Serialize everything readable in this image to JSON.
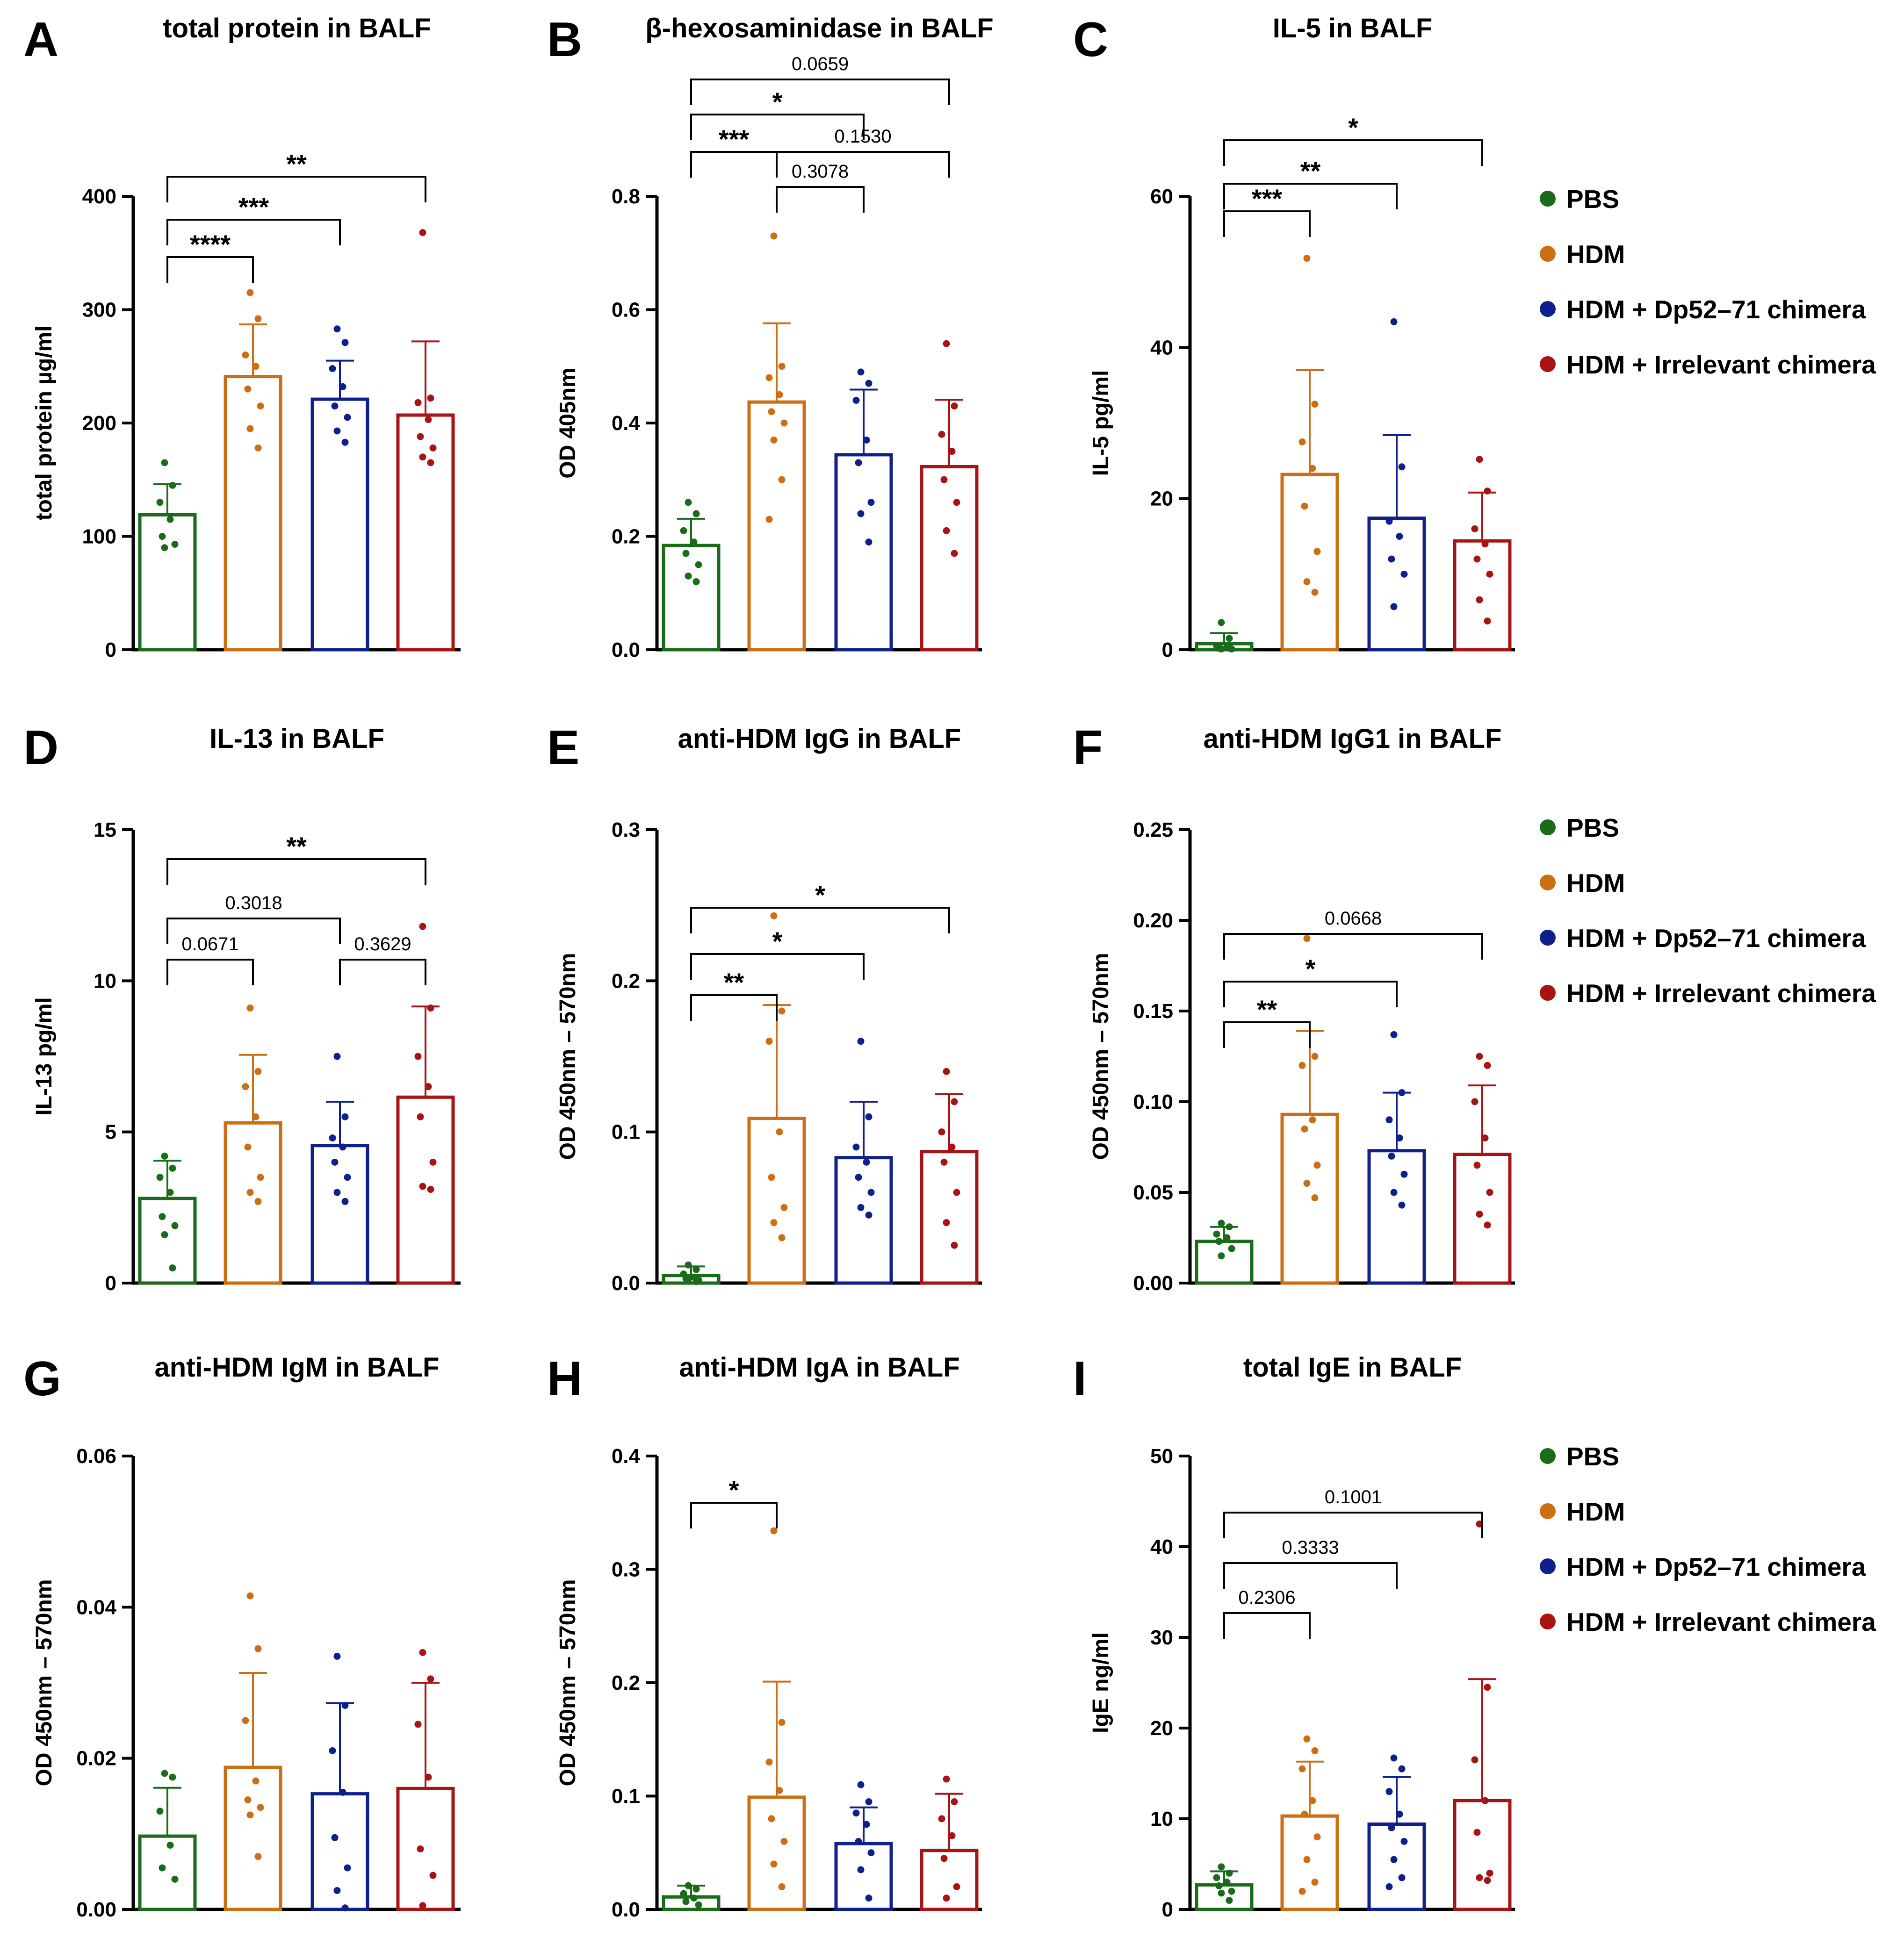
{
  "figure": {
    "legend": {
      "items": [
        {
          "label": "PBS",
          "color": "#1a6b1a"
        },
        {
          "label": "HDM",
          "color": "#cc6f14"
        },
        {
          "label": "HDM + Dp52–71 chimera",
          "color": "#0f1f8c"
        },
        {
          "label": "HDM + Irrelevant chimera",
          "color": "#a81414"
        }
      ]
    }
  },
  "chart_data": [
    {
      "panel": "A",
      "type": "bar",
      "title": "total protein in BALF",
      "ylabel": "total protein µg/ml",
      "ylim": [
        0,
        400
      ],
      "yticks": [
        0,
        100,
        200,
        300,
        400
      ],
      "ytick_labels": [
        "0",
        "100",
        "200",
        "300",
        "400"
      ],
      "categories": [
        "PBS",
        "HDM",
        "HDM + Dp52–71 chimera",
        "HDM + Irrelevant chimera"
      ],
      "values": [
        119,
        241,
        221,
        207
      ],
      "errors": [
        27,
        46,
        34,
        65
      ],
      "points": [
        [
          165,
          145,
          130,
          115,
          100,
          93,
          90
        ],
        [
          315,
          292,
          260,
          250,
          230,
          215,
          195,
          178
        ],
        [
          283,
          271,
          248,
          232,
          215,
          205,
          193,
          183
        ],
        [
          368,
          222,
          218,
          203,
          188,
          178,
          170,
          165
        ]
      ],
      "comparisons": [
        {
          "from": 0,
          "to": 1,
          "label": "****"
        },
        {
          "from": 0,
          "to": 2,
          "label": "***"
        },
        {
          "from": 0,
          "to": 3,
          "label": "**"
        }
      ]
    },
    {
      "panel": "B",
      "type": "bar",
      "title": "β-hexosaminidase in BALF",
      "ylabel": "OD 405nm",
      "ylim": [
        0,
        0.8
      ],
      "yticks": [
        0,
        0.2,
        0.4,
        0.6,
        0.8
      ],
      "ytick_labels": [
        "0.0",
        "0.2",
        "0.4",
        "0.6",
        "0.8"
      ],
      "categories": [
        "PBS",
        "HDM",
        "HDM + Dp52–71 chimera",
        "HDM + Irrelevant chimera"
      ],
      "values": [
        0.184,
        0.437,
        0.344,
        0.323
      ],
      "errors": [
        0.047,
        0.139,
        0.115,
        0.118
      ],
      "points": [
        [
          0.26,
          0.24,
          0.21,
          0.19,
          0.17,
          0.15,
          0.13,
          0.12
        ],
        [
          0.73,
          0.5,
          0.48,
          0.45,
          0.42,
          0.4,
          0.37,
          0.3,
          0.23
        ],
        [
          0.49,
          0.47,
          0.44,
          0.37,
          0.33,
          0.26,
          0.24,
          0.19
        ],
        [
          0.54,
          0.43,
          0.38,
          0.35,
          0.3,
          0.26,
          0.21,
          0.17
        ]
      ],
      "comparisons": [
        {
          "from": 0,
          "to": 3,
          "label": "0.0659"
        },
        {
          "from": 0,
          "to": 2,
          "label": "*"
        },
        {
          "from": 0,
          "to": 1,
          "label": "***"
        },
        {
          "from": 1,
          "to": 3,
          "label": "0.1530"
        },
        {
          "from": 1,
          "to": 2,
          "label": "0.3078"
        }
      ]
    },
    {
      "panel": "C",
      "type": "bar",
      "title": "IL-5 in BALF",
      "ylabel": "IL-5 pg/ml",
      "ylim": [
        0,
        60
      ],
      "yticks": [
        0,
        20,
        40,
        60
      ],
      "ytick_labels": [
        "0",
        "20",
        "40",
        "60"
      ],
      "categories": [
        "PBS",
        "HDM",
        "HDM + Dp52–71 chimera",
        "HDM + Irrelevant chimera"
      ],
      "values": [
        0.8,
        23.2,
        17.4,
        14.4
      ],
      "errors": [
        1.4,
        13.8,
        11.0,
        6.4
      ],
      "points": [
        [
          3.6,
          1.5,
          0.5,
          0.3,
          0.2,
          0.1,
          0.1,
          0.2
        ],
        [
          51.8,
          32.5,
          27.5,
          24.0,
          19.0,
          13.0,
          9.0,
          7.6
        ],
        [
          43.4,
          24.2,
          17.0,
          15.0,
          12.0,
          10.0,
          5.7
        ],
        [
          25.2,
          21.0,
          16.0,
          14.0,
          12.0,
          10.0,
          6.6,
          3.8
        ]
      ],
      "comparisons": [
        {
          "from": 0,
          "to": 3,
          "label": "*"
        },
        {
          "from": 0,
          "to": 2,
          "label": "**"
        },
        {
          "from": 0,
          "to": 1,
          "label": "***"
        }
      ]
    },
    {
      "panel": "D",
      "type": "bar",
      "title": "IL-13 in BALF",
      "ylabel": "IL-13 pg/ml",
      "ylim": [
        0,
        15
      ],
      "yticks": [
        0,
        5,
        10,
        15
      ],
      "ytick_labels": [
        "0",
        "5",
        "10",
        "15"
      ],
      "categories": [
        "PBS",
        "HDM",
        "HDM + Dp52–71 chimera",
        "HDM + Irrelevant chimera"
      ],
      "values": [
        2.8,
        5.3,
        4.55,
        6.15
      ],
      "errors": [
        1.25,
        2.25,
        1.45,
        3.0
      ],
      "points": [
        [
          4.2,
          3.8,
          3.5,
          3.0,
          2.2,
          1.9,
          1.6,
          0.5
        ],
        [
          9.1,
          7.0,
          6.5,
          5.5,
          4.5,
          3.5,
          3.0,
          2.7
        ],
        [
          7.5,
          5.5,
          4.8,
          4.5,
          4.0,
          3.5,
          3.0,
          2.7
        ],
        [
          11.8,
          9.1,
          7.5,
          6.5,
          5.5,
          4.0,
          3.2,
          3.1
        ]
      ],
      "comparisons": [
        {
          "from": 0,
          "to": 3,
          "label": "**"
        },
        {
          "from": 0,
          "to": 2,
          "label": "0.3018"
        },
        {
          "from": 0,
          "to": 1,
          "label": "0.0671"
        },
        {
          "from": 2,
          "to": 3,
          "label": "0.3629"
        }
      ]
    },
    {
      "panel": "E",
      "type": "bar",
      "title": "anti-HDM IgG in BALF",
      "ylabel": "OD 450nm – 570nm",
      "ylim": [
        0,
        0.3
      ],
      "yticks": [
        0,
        0.1,
        0.2,
        0.3
      ],
      "ytick_labels": [
        "0.0",
        "0.1",
        "0.2",
        "0.3"
      ],
      "categories": [
        "PBS",
        "HDM",
        "HDM + Dp52–71 chimera",
        "HDM + Irrelevant chimera"
      ],
      "values": [
        0.005,
        0.109,
        0.083,
        0.087
      ],
      "errors": [
        0.006,
        0.075,
        0.037,
        0.038
      ],
      "points": [
        [
          0.012,
          0.009,
          0.006,
          0.004,
          0.003,
          0.002,
          0.002,
          0.001
        ],
        [
          0.243,
          0.18,
          0.16,
          0.1,
          0.07,
          0.05,
          0.04,
          0.03
        ],
        [
          0.16,
          0.11,
          0.09,
          0.08,
          0.07,
          0.06,
          0.05,
          0.045
        ],
        [
          0.14,
          0.12,
          0.1,
          0.09,
          0.08,
          0.06,
          0.04,
          0.025
        ]
      ],
      "comparisons": [
        {
          "from": 0,
          "to": 3,
          "label": "*"
        },
        {
          "from": 0,
          "to": 2,
          "label": "*"
        },
        {
          "from": 0,
          "to": 1,
          "label": "**"
        }
      ]
    },
    {
      "panel": "F",
      "type": "bar",
      "title": "anti-HDM IgG1 in BALF",
      "ylabel": "OD 450nm – 570nm",
      "ylim": [
        0,
        0.25
      ],
      "yticks": [
        0,
        0.05,
        0.1,
        0.15,
        0.2,
        0.25
      ],
      "ytick_labels": [
        "0.00",
        "0.05",
        "0.10",
        "0.15",
        "0.20",
        "0.25"
      ],
      "categories": [
        "PBS",
        "HDM",
        "HDM + Dp52–71 chimera",
        "HDM + Irrelevant chimera"
      ],
      "values": [
        0.023,
        0.093,
        0.073,
        0.071
      ],
      "errors": [
        0.008,
        0.046,
        0.032,
        0.038
      ],
      "points": [
        [
          0.033,
          0.031,
          0.027,
          0.025,
          0.023,
          0.019,
          0.015
        ],
        [
          0.19,
          0.125,
          0.12,
          0.09,
          0.085,
          0.065,
          0.055,
          0.047
        ],
        [
          0.137,
          0.105,
          0.09,
          0.08,
          0.07,
          0.06,
          0.05,
          0.043
        ],
        [
          0.125,
          0.12,
          0.1,
          0.08,
          0.065,
          0.05,
          0.038,
          0.032
        ]
      ],
      "comparisons": [
        {
          "from": 0,
          "to": 3,
          "label": "0.0668"
        },
        {
          "from": 0,
          "to": 2,
          "label": "*"
        },
        {
          "from": 0,
          "to": 1,
          "label": "**"
        }
      ]
    },
    {
      "panel": "G",
      "type": "bar",
      "title": "anti-HDM IgM in BALF",
      "ylabel": "OD 450nm – 570nm",
      "ylim": [
        0,
        0.06
      ],
      "yticks": [
        0,
        0.02,
        0.04,
        0.06
      ],
      "ytick_labels": [
        "0.00",
        "0.02",
        "0.04",
        "0.06"
      ],
      "categories": [
        "PBS",
        "HDM",
        "HDM + Dp52–71 chimera",
        "HDM + Irrelevant chimera"
      ],
      "values": [
        0.0097,
        0.0188,
        0.0153,
        0.016
      ],
      "errors": [
        0.0064,
        0.0125,
        0.012,
        0.014
      ],
      "points": [
        [
          0.018,
          0.0175,
          0.013,
          0.0085,
          0.0055,
          0.004
        ],
        [
          0.0415,
          0.0345,
          0.025,
          0.017,
          0.0145,
          0.0135,
          0.0125,
          0.007
        ],
        [
          0.0335,
          0.027,
          0.021,
          0.0155,
          0.0095,
          0.0055,
          0.0025,
          0.0002
        ],
        [
          0.034,
          0.0305,
          0.0245,
          0.0175,
          0.008,
          0.0045,
          0.0005
        ]
      ],
      "comparisons": []
    },
    {
      "panel": "H",
      "type": "bar",
      "title": "anti-HDM IgA in BALF",
      "ylabel": "OD 450nm – 570nm",
      "ylim": [
        0,
        0.4
      ],
      "yticks": [
        0,
        0.1,
        0.2,
        0.3,
        0.4
      ],
      "ytick_labels": [
        "0.0",
        "0.1",
        "0.2",
        "0.3",
        "0.4"
      ],
      "categories": [
        "PBS",
        "HDM",
        "HDM + Dp52–71 chimera",
        "HDM + Irrelevant chimera"
      ],
      "values": [
        0.011,
        0.099,
        0.058,
        0.052
      ],
      "errors": [
        0.01,
        0.102,
        0.032,
        0.05
      ],
      "points": [
        [
          0.021,
          0.018,
          0.014,
          0.01,
          0.007,
          0.004
        ],
        [
          0.334,
          0.165,
          0.13,
          0.105,
          0.08,
          0.06,
          0.04,
          0.02
        ],
        [
          0.11,
          0.095,
          0.085,
          0.075,
          0.06,
          0.05,
          0.035,
          0.01
        ],
        [
          0.115,
          0.095,
          0.08,
          0.065,
          0.045,
          0.02,
          0.01
        ]
      ],
      "comparisons": [
        {
          "from": 0,
          "to": 1,
          "label": "*"
        }
      ]
    },
    {
      "panel": "I",
      "type": "bar",
      "title": "total IgE in BALF",
      "ylabel": "IgE ng/ml",
      "ylim": [
        0,
        50
      ],
      "yticks": [
        0,
        10,
        20,
        30,
        40,
        50
      ],
      "ytick_labels": [
        "0",
        "10",
        "20",
        "30",
        "40",
        "50"
      ],
      "categories": [
        "PBS",
        "HDM",
        "HDM + Dp52–71 chimera",
        "HDM + Irrelevant chimera"
      ],
      "values": [
        2.7,
        10.3,
        9.4,
        12.0
      ],
      "errors": [
        1.5,
        6.0,
        5.2,
        13.4
      ],
      "points": [
        [
          4.7,
          4.0,
          3.5,
          3.0,
          2.6,
          2.0,
          1.8,
          1.0
        ],
        [
          18.8,
          17.5,
          15.5,
          12.0,
          10.5,
          8.0,
          5.5,
          3.0,
          2.0
        ],
        [
          16.7,
          15.5,
          13.0,
          10.5,
          9.0,
          7.5,
          5.5,
          3.5,
          2.5
        ],
        [
          42.5,
          24.5,
          16.5,
          12.0,
          8.5,
          4.0,
          3.5,
          3.2
        ]
      ],
      "comparisons": [
        {
          "from": 0,
          "to": 3,
          "label": "0.1001"
        },
        {
          "from": 0,
          "to": 2,
          "label": "0.3333"
        },
        {
          "from": 0,
          "to": 1,
          "label": "0.2306"
        }
      ]
    }
  ]
}
